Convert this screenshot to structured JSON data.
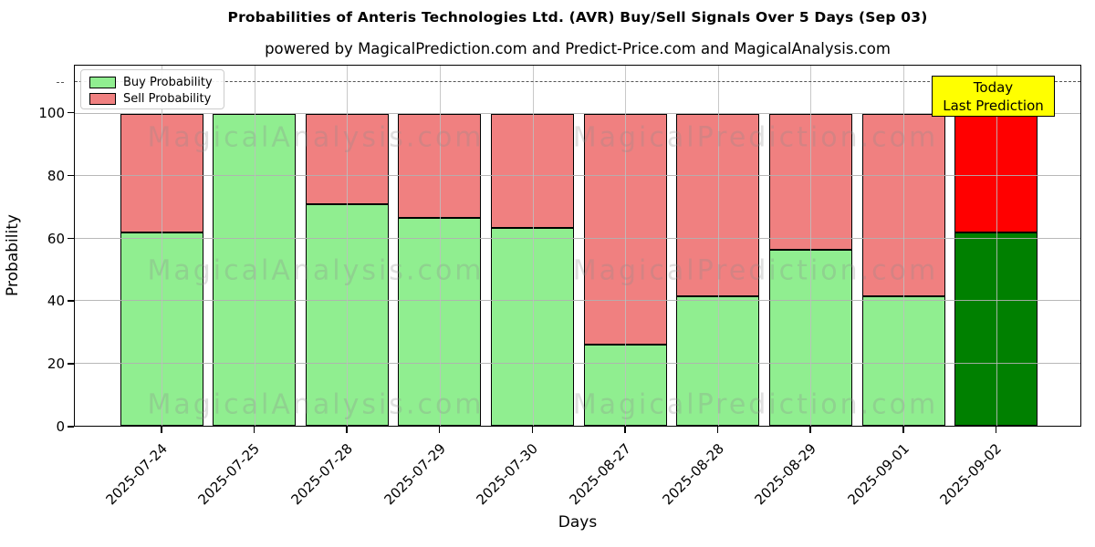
{
  "header": {
    "title": "Probabilities of Anteris Technologies Ltd. (AVR) Buy/Sell Signals Over 5 Days (Sep 03)",
    "subtitle": "powered by MagicalPrediction.com and Predict-Price.com and MagicalAnalysis.com"
  },
  "axes": {
    "x_label": "Days",
    "y_label": "Probability",
    "y_ticks": [
      0,
      20,
      40,
      60,
      80,
      100
    ],
    "y_max": 115.4,
    "dashed_line_y": 110,
    "x_tick_rotation_deg": 45,
    "grid": true
  },
  "legend": {
    "position": "upper left",
    "items": [
      {
        "label": "Buy Probability",
        "color": "#90ee90"
      },
      {
        "label": "Sell Probability",
        "color": "#f08080"
      }
    ]
  },
  "annotation": {
    "line1": "Today",
    "line2": "Last Prediction",
    "bg_color": "#ffff00"
  },
  "watermarks": {
    "left_text": "MagicalAnalysis.com",
    "right_text": "MagicalPrediction.com"
  },
  "colors": {
    "buy": "#90ee90",
    "sell": "#f08080",
    "today_buy": "#008000",
    "today_sell": "#ff0000",
    "edge": "#000000",
    "grid": "#b0b0b0",
    "dashed_line": "#555555"
  },
  "chart_data": {
    "type": "bar",
    "stacked": true,
    "title": "Probabilities of Anteris Technologies Ltd. (AVR) Buy/Sell Signals Over 5 Days (Sep 03)",
    "xlabel": "Days",
    "ylabel": "Probability",
    "ylim": [
      0,
      115.4
    ],
    "grid": true,
    "legend_position": "upper left",
    "categories": [
      "2025-07-24",
      "2025-07-25",
      "2025-07-28",
      "2025-07-29",
      "2025-07-30",
      "2025-08-27",
      "2025-08-28",
      "2025-08-29",
      "2025-09-01",
      "2025-09-02"
    ],
    "series": [
      {
        "name": "Buy Probability",
        "values": [
          62,
          100,
          71,
          66.5,
          63.5,
          26,
          41.5,
          56.5,
          41.5,
          62
        ]
      },
      {
        "name": "Sell Probability",
        "values": [
          38,
          0,
          29,
          33.5,
          36.5,
          74,
          58.5,
          43.5,
          58.5,
          38
        ]
      }
    ],
    "today_index": 9,
    "dashed_threshold_line": 110
  }
}
